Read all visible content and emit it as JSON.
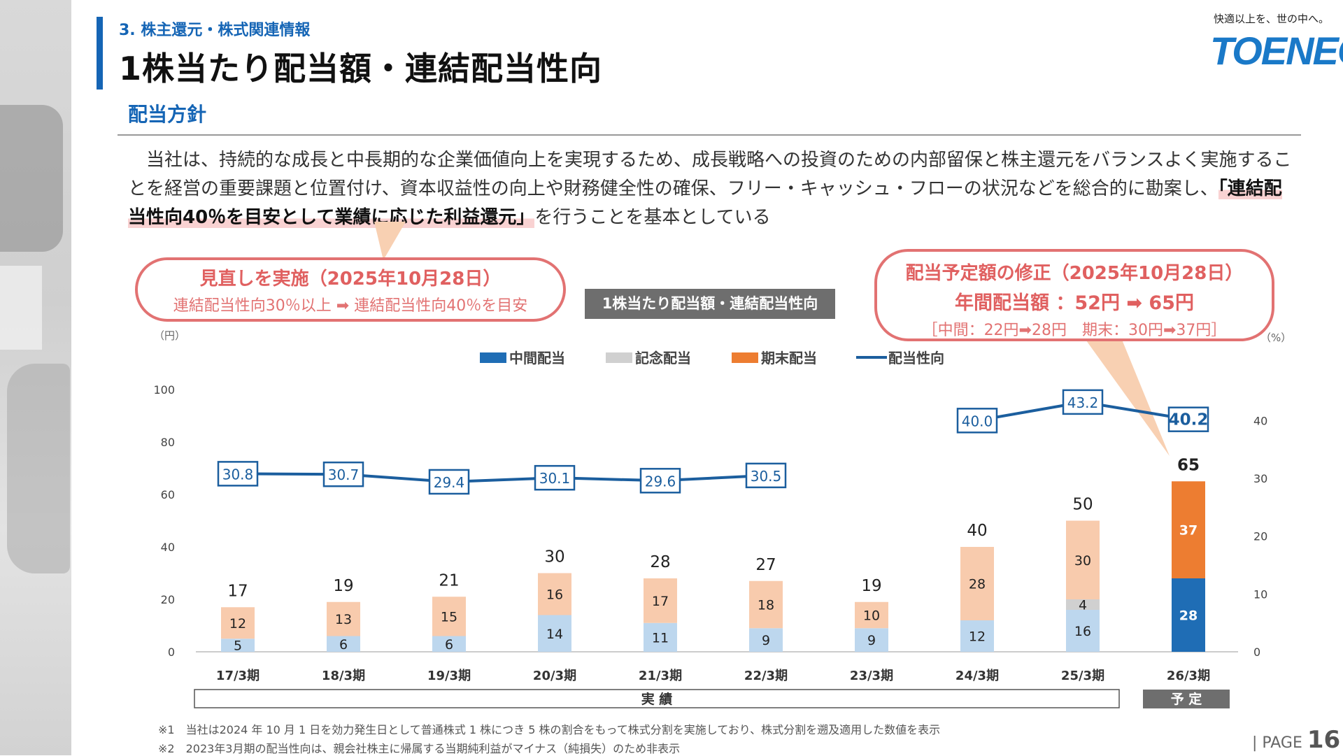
{
  "header": {
    "section": "3. 株主還元・株式関連情報",
    "title": "1株当たり配当額・連結配当性向",
    "tagline": "快適以上を、世の中へ。",
    "logo": "TOENEC"
  },
  "policy": {
    "subhead": "配当方針",
    "text_before": "当社は、持続的な成長と中長期的な企業価値向上を実現するため、成長戦略への投資のための内部留保と株主還元をバランスよく実施することを経営の重要課題と位置付け、資本収益性の向上や財務健全性の確保、フリー・キャッシュ・フローの状況などを総合的に勘案し、",
    "highlight": "「連結配当性向40％を目安として業績に応じた利益還元」",
    "text_after": "を行うことを基本としている"
  },
  "callout_left": {
    "title": "見直しを実施（2025年10月28日）",
    "text": "連結配当性向30％以上 ➡ 連結配当性向40％を目安"
  },
  "callout_right": {
    "title": "配当予定額の修正（2025年10月28日）",
    "line2": "年間配当額 ：52円 ➡ 65円",
    "line3": "［中間：22円➡28円　期末：30円➡37円］"
  },
  "chart_label": "1株当たり配当額・連結配当性向",
  "chart_data": {
    "type": "bar",
    "stacked": true,
    "categories": [
      "17/3期",
      "18/3期",
      "19/3期",
      "20/3期",
      "21/3期",
      "22/3期",
      "23/3期",
      "24/3期",
      "25/3期",
      "26/3期"
    ],
    "series": [
      {
        "name": "中間配当",
        "values": [
          5,
          6,
          6,
          14,
          11,
          9,
          9,
          12,
          16,
          28
        ]
      },
      {
        "name": "記念配当",
        "values": [
          0,
          0,
          0,
          0,
          0,
          0,
          0,
          0,
          4,
          0
        ]
      },
      {
        "name": "期末配当",
        "values": [
          12,
          13,
          15,
          16,
          17,
          18,
          10,
          28,
          30,
          37
        ]
      }
    ],
    "totals": [
      "17",
      "19",
      "21",
      "30",
      "28",
      "27",
      "19",
      "40",
      "50",
      "65"
    ],
    "line_series": {
      "name": "配当性向",
      "values": [
        30.8,
        30.7,
        29.4,
        30.1,
        29.6,
        30.5,
        null,
        40.0,
        43.2,
        40.2
      ],
      "labels": [
        "30.8",
        "30.7",
        "29.4",
        "30.1",
        "29.6",
        "30.5",
        "",
        "40.0",
        "43.2",
        "40.2"
      ]
    },
    "y_left": {
      "unit": "（円）",
      "range": [
        0,
        100
      ],
      "ticks": [
        "0",
        "20",
        "40",
        "60",
        "80",
        "100"
      ]
    },
    "y_right": {
      "unit": "（%）",
      "range": [
        0,
        45
      ],
      "ticks": [
        "0",
        "10",
        "20",
        "30",
        "40"
      ]
    },
    "period_actual": "実 績",
    "period_plan": "予 定",
    "legend_position": "top",
    "colors": {
      "interim": "#bdd7ee",
      "commemorative": "#d0d0d0",
      "yearend": "#f8cbad",
      "interim_plan": "#1f6db5",
      "yearend_plan": "#ed7d31",
      "line": "#1b5e9e"
    }
  },
  "footnotes": [
    "※1　当社は2024 年 10 月 1 日を効力発生日として普通株式 1 株につき 5 株の割合をもって株式分割を実施しており、株式分割を遡及適用した数値を表示",
    "※2　2023年3月期の配当性向は、親会社株主に帰属する当期純利益がマイナス（純損失）のため非表示"
  ],
  "page": {
    "prefix": "PAGE",
    "number": "16"
  }
}
